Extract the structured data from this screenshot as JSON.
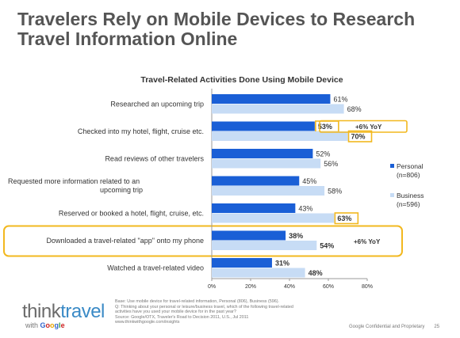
{
  "title": "Travelers Rely on Mobile Devices to Research Travel Information Online",
  "chart_data": {
    "type": "bar",
    "orientation": "horizontal",
    "title": "Travel-Related Activities Done Using Mobile Device",
    "categories": [
      "Researched an upcoming trip",
      "Checked into my hotel, flight, cruise etc.",
      "Read reviews of other travelers",
      "Requested more information related to an upcoming trip",
      "Reserved or booked a hotel, flight, cruise, etc.",
      "Downloaded a travel-related \"app\"  onto my phone",
      "Watched a travel-related video"
    ],
    "series": [
      {
        "name": "Personal (n=806)",
        "values": [
          61,
          53,
          52,
          45,
          43,
          38,
          31
        ],
        "color": "#1a5fd6"
      },
      {
        "name": "Business (n=596)",
        "values": [
          68,
          70,
          56,
          58,
          63,
          54,
          48
        ],
        "color": "#c7dcf5"
      }
    ],
    "value_labels": {
      "Personal (n=806)": [
        "61%",
        "53%",
        "52%",
        "45%",
        "43%",
        "38%",
        "31%"
      ],
      "Business (n=596)": [
        "68%",
        "70%",
        "56%",
        "58%",
        "63%",
        "54%",
        "48%"
      ]
    },
    "bold_labels": {
      "Personal (n=806)": [
        false,
        true,
        false,
        false,
        false,
        true,
        true
      ],
      "Business (n=596)": [
        false,
        true,
        false,
        false,
        true,
        true,
        true
      ]
    },
    "boxed_labels": {
      "Personal (n=806)": [
        false,
        true,
        false,
        false,
        false,
        false,
        false
      ],
      "Business (n=596)": [
        false,
        true,
        false,
        false,
        true,
        false,
        false
      ]
    },
    "annotations": [
      {
        "category_index": 1,
        "text": "+6% YoY"
      },
      {
        "category_index": 5,
        "text": "+6% YoY"
      }
    ],
    "highlighted_row": 5,
    "xlim": [
      0,
      80
    ],
    "xticks": [
      "0%",
      "20%",
      "40%",
      "60%",
      "80%"
    ],
    "legend": {
      "placement": "right",
      "entries": [
        {
          "lines": [
            "Personal",
            "(n=806)"
          ]
        },
        {
          "lines": [
            "Business",
            "(n=596)"
          ]
        }
      ]
    },
    "highlight_color": "#f2b81f"
  },
  "logo": {
    "think": "think",
    "travel": "travel",
    "with": "with",
    "google_letters": [
      "G",
      "o",
      "o",
      "g",
      "l",
      "e"
    ]
  },
  "source_lines": [
    "Base:  Use mobile device for travel-related information, Personal (806), Business (596).",
    "Q: Thinking about your personal or leisure/business travel, which of the following travel-related",
    "activities have you used your mobile device for in the past year?",
    "Source: Google/OTX, Traveler's Road to Decision 2011, U.S., Jul 2011",
    "www.thinkwithgoogle.com/insights"
  ],
  "footer": {
    "text": "Google Confidential and Proprietary",
    "page": "25"
  }
}
